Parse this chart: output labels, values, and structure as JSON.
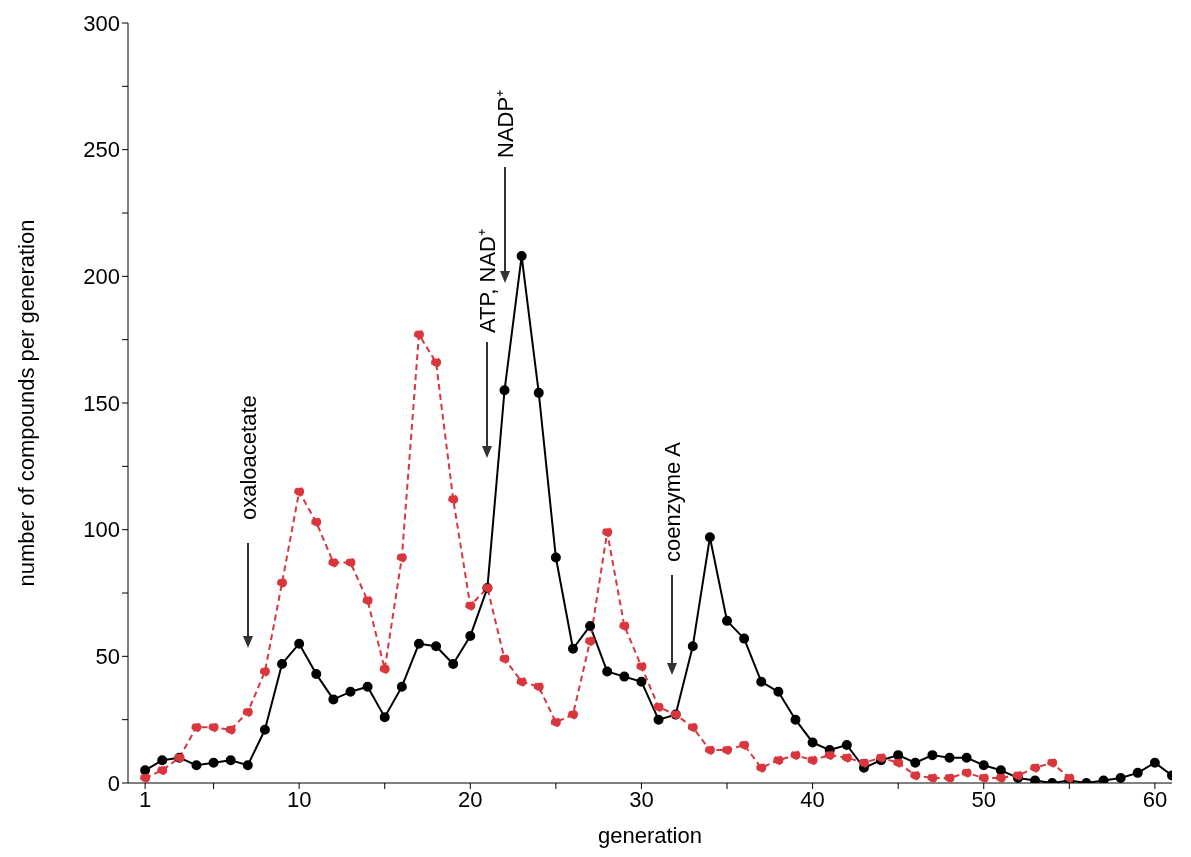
{
  "chart_data": {
    "type": "line",
    "xlabel": "generation",
    "ylabel": "number of compounds per generation",
    "x": [
      1,
      2,
      3,
      4,
      5,
      6,
      7,
      8,
      9,
      10,
      11,
      12,
      13,
      14,
      15,
      16,
      17,
      18,
      19,
      20,
      21,
      22,
      23,
      24,
      25,
      26,
      27,
      28,
      29,
      30,
      31,
      32,
      33,
      34,
      35,
      36,
      37,
      38,
      39,
      40,
      41,
      42,
      43,
      44,
      45,
      46,
      47,
      48,
      49,
      50,
      51,
      52,
      53,
      54,
      55,
      56,
      57,
      58,
      59,
      60,
      61
    ],
    "series": [
      {
        "color": "#000000",
        "line_style": "solid",
        "values": [
          5,
          9,
          10,
          7,
          8,
          9,
          7,
          21,
          47,
          55,
          43,
          33,
          36,
          38,
          26,
          38,
          55,
          54,
          47,
          58,
          77,
          155,
          208,
          154,
          89,
          53,
          62,
          44,
          42,
          40,
          25,
          27,
          54,
          97,
          64,
          57,
          40,
          36,
          25,
          16,
          13,
          15,
          6,
          9,
          11,
          8,
          11,
          10,
          10,
          7,
          5,
          2,
          1,
          0,
          1,
          0,
          1,
          2,
          4,
          8,
          3
        ]
      },
      {
        "color": "#d9363e",
        "line_style": "dashed",
        "values": [
          2,
          5,
          10,
          22,
          22,
          21,
          28,
          44,
          79,
          115,
          103,
          87,
          87,
          72,
          45,
          89,
          177,
          166,
          112,
          70,
          77,
          49,
          40,
          38,
          24,
          27,
          56,
          99,
          62,
          46,
          30,
          27,
          22,
          13,
          13,
          15,
          6,
          9,
          11,
          9,
          11,
          10,
          8,
          10,
          8,
          3,
          2,
          2,
          4,
          2,
          2,
          3,
          6,
          8,
          2,
          null,
          null,
          null,
          null,
          null,
          null
        ]
      }
    ],
    "xlim": [
      0,
      61
    ],
    "xticks": [
      1,
      {
        "value": 5,
        "label": null
      },
      10,
      {
        "value": 15,
        "label": null
      },
      20,
      {
        "value": 25,
        "label": null
      },
      30,
      {
        "value": 35,
        "label": null
      },
      40,
      {
        "value": 45,
        "label": null
      },
      50,
      {
        "value": 55,
        "label": null
      },
      60
    ],
    "ylim": [
      0,
      300
    ],
    "yticks": [
      0,
      {
        "value": 25,
        "label": null
      },
      50,
      {
        "value": 75,
        "label": null
      },
      100,
      {
        "value": 125,
        "label": null
      },
      150,
      {
        "value": 175,
        "label": null
      },
      200,
      {
        "value": 225,
        "label": null
      },
      250,
      {
        "value": 275,
        "label": null
      },
      300
    ],
    "marker": "circle",
    "grid": false,
    "legend": false,
    "annotations": [
      "oxaloacetate",
      "ATP, NAD⁺",
      "NADP⁺",
      "coenzyme A"
    ]
  }
}
